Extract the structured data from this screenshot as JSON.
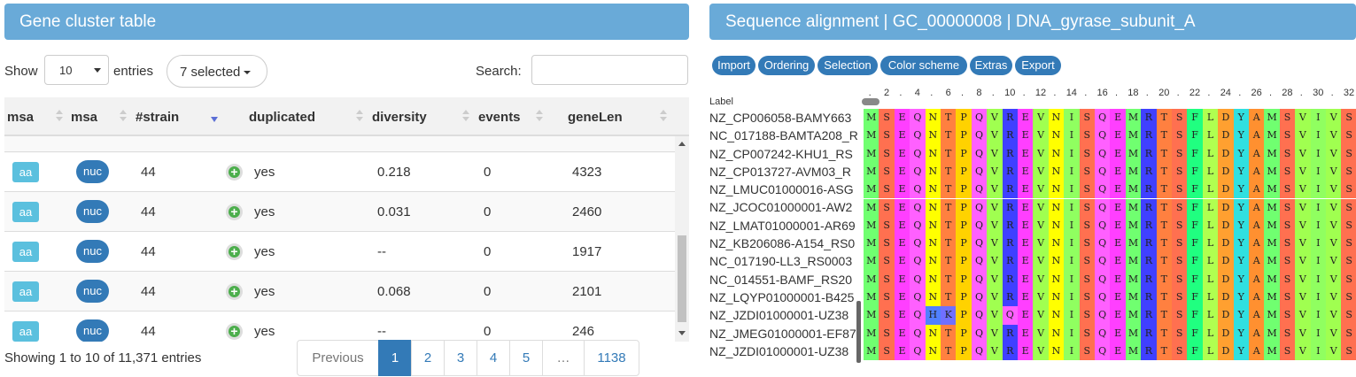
{
  "left": {
    "title": "Gene cluster table",
    "show_label": "Show",
    "length_value": "10",
    "entries_label": "entries",
    "selected_button": "7 selected",
    "search_label": "Search:",
    "search_value": "",
    "columns": [
      "msa",
      "msa",
      "#strain",
      "duplicated",
      "diversity",
      "events",
      "geneLen"
    ],
    "rows": [
      {
        "aa": "aa",
        "nuc": "nuc",
        "strain": "44",
        "dup": "yes",
        "diversity": "0.218",
        "events": "0",
        "len": "4323"
      },
      {
        "aa": "aa",
        "nuc": "nuc",
        "strain": "44",
        "dup": "yes",
        "diversity": "0.031",
        "events": "0",
        "len": "2460"
      },
      {
        "aa": "aa",
        "nuc": "nuc",
        "strain": "44",
        "dup": "yes",
        "diversity": "--",
        "events": "0",
        "len": "1917"
      },
      {
        "aa": "aa",
        "nuc": "nuc",
        "strain": "44",
        "dup": "yes",
        "diversity": "0.068",
        "events": "0",
        "len": "2101"
      },
      {
        "aa": "aa",
        "nuc": "nuc",
        "strain": "44",
        "dup": "yes",
        "diversity": "--",
        "events": "0",
        "len": "246"
      }
    ],
    "info": "Showing 1 to 10 of 11,371 entries",
    "pager": {
      "prev": "Previous",
      "pages": [
        "1",
        "2",
        "3",
        "4",
        "5"
      ],
      "dots": "…",
      "last": "1138"
    }
  },
  "right": {
    "title": "Sequence alignment | GC_00000008 | DNA_gyrase_subunit_A",
    "toolbar": [
      "Import",
      "Ordering",
      "Selection",
      "Color scheme",
      "Extras",
      "Export"
    ],
    "label_header": "Label",
    "ruler": [
      ".",
      "2",
      ".",
      "4",
      ".",
      "6",
      ".",
      "8",
      ".",
      "10",
      ".",
      "12",
      ".",
      "14",
      ".",
      "16",
      ".",
      "18",
      ".",
      "20",
      ".",
      "22",
      ".",
      "24",
      ".",
      "26",
      ".",
      "28",
      ".",
      "30",
      ".",
      "32"
    ],
    "labels": [
      "NZ_CP006058-BAMY663",
      "NC_017188-BAMTA208_R",
      "NZ_CP007242-KHU1_RS",
      "NZ_CP013727-AVM03_R",
      "NZ_LMUC01000016-ASG",
      "NZ_JCOC01000001-AW2",
      "NZ_LMAT01000001-AR69",
      "NZ_KB206086-A154_RS0",
      "NC_017190-LL3_RS0003",
      "NC_014551-BAMF_RS20",
      "NZ_LQYP01000001-B425",
      "NZ_JZDI01000001-UZ38",
      "NZ_JMEG01000001-EF87",
      "NZ_JZDI01000001-UZ38"
    ],
    "sequences": [
      "MSEQNTPQVREVNISQEMRTSFLDYAMSVIVS",
      "MSEQNTPQVREVNISQEMRTSFLDYAMSVIVS",
      "MSEQNTPQVREVNISQEMRTSFLDYAMSVIVS",
      "MSEQNTPQVREVNISQEMRTSFLDYAMSVIVS",
      "MSEQNTPQVREVNISQEMRTSFLDYAMSVIVS",
      "MSEQNTPQVREVNISQEMRTSFLDYAMSVIVS",
      "MSEQNTPQVREVNISQEMRTSFLDYAMSVIVS",
      "MSEQNTPQVREVNISQEMRTSFLDYAMSVIVS",
      "MSEQNTPQVREVNISQEMRTSFLDYAMSVIVS",
      "MSEQNTPQVREVNISQEMRTSFLDYAMSVIVS",
      "MSEQNTPQVREVNISQEMRTSFLDYAMSVIVS",
      "MSEQHKPQVQEVNISQEMRTSFLDYAMSVIVS",
      "MSEQNTPQVREVNISQEMRTSFLDYAMSVIVS",
      "MSEQNTPQVREVNISQEMRTSFLDYAMSVIVS"
    ],
    "residue_colors": {
      "M": "#70ff70",
      "S": "#ff7050",
      "E": "#ff3fff",
      "Q": "#ff60ff",
      "N": "#ffff00",
      "T": "#ff8040",
      "P": "#ffd200",
      "V": "#a0ff50",
      "R": "#4040ff",
      "I": "#90ff60",
      "D": "#ffa030",
      "F": "#20ff80",
      "L": "#b0ff50",
      "Y": "#30e0e0",
      "A": "#ff9030",
      "H": "#5080ff",
      "K": "#7070ff"
    }
  }
}
